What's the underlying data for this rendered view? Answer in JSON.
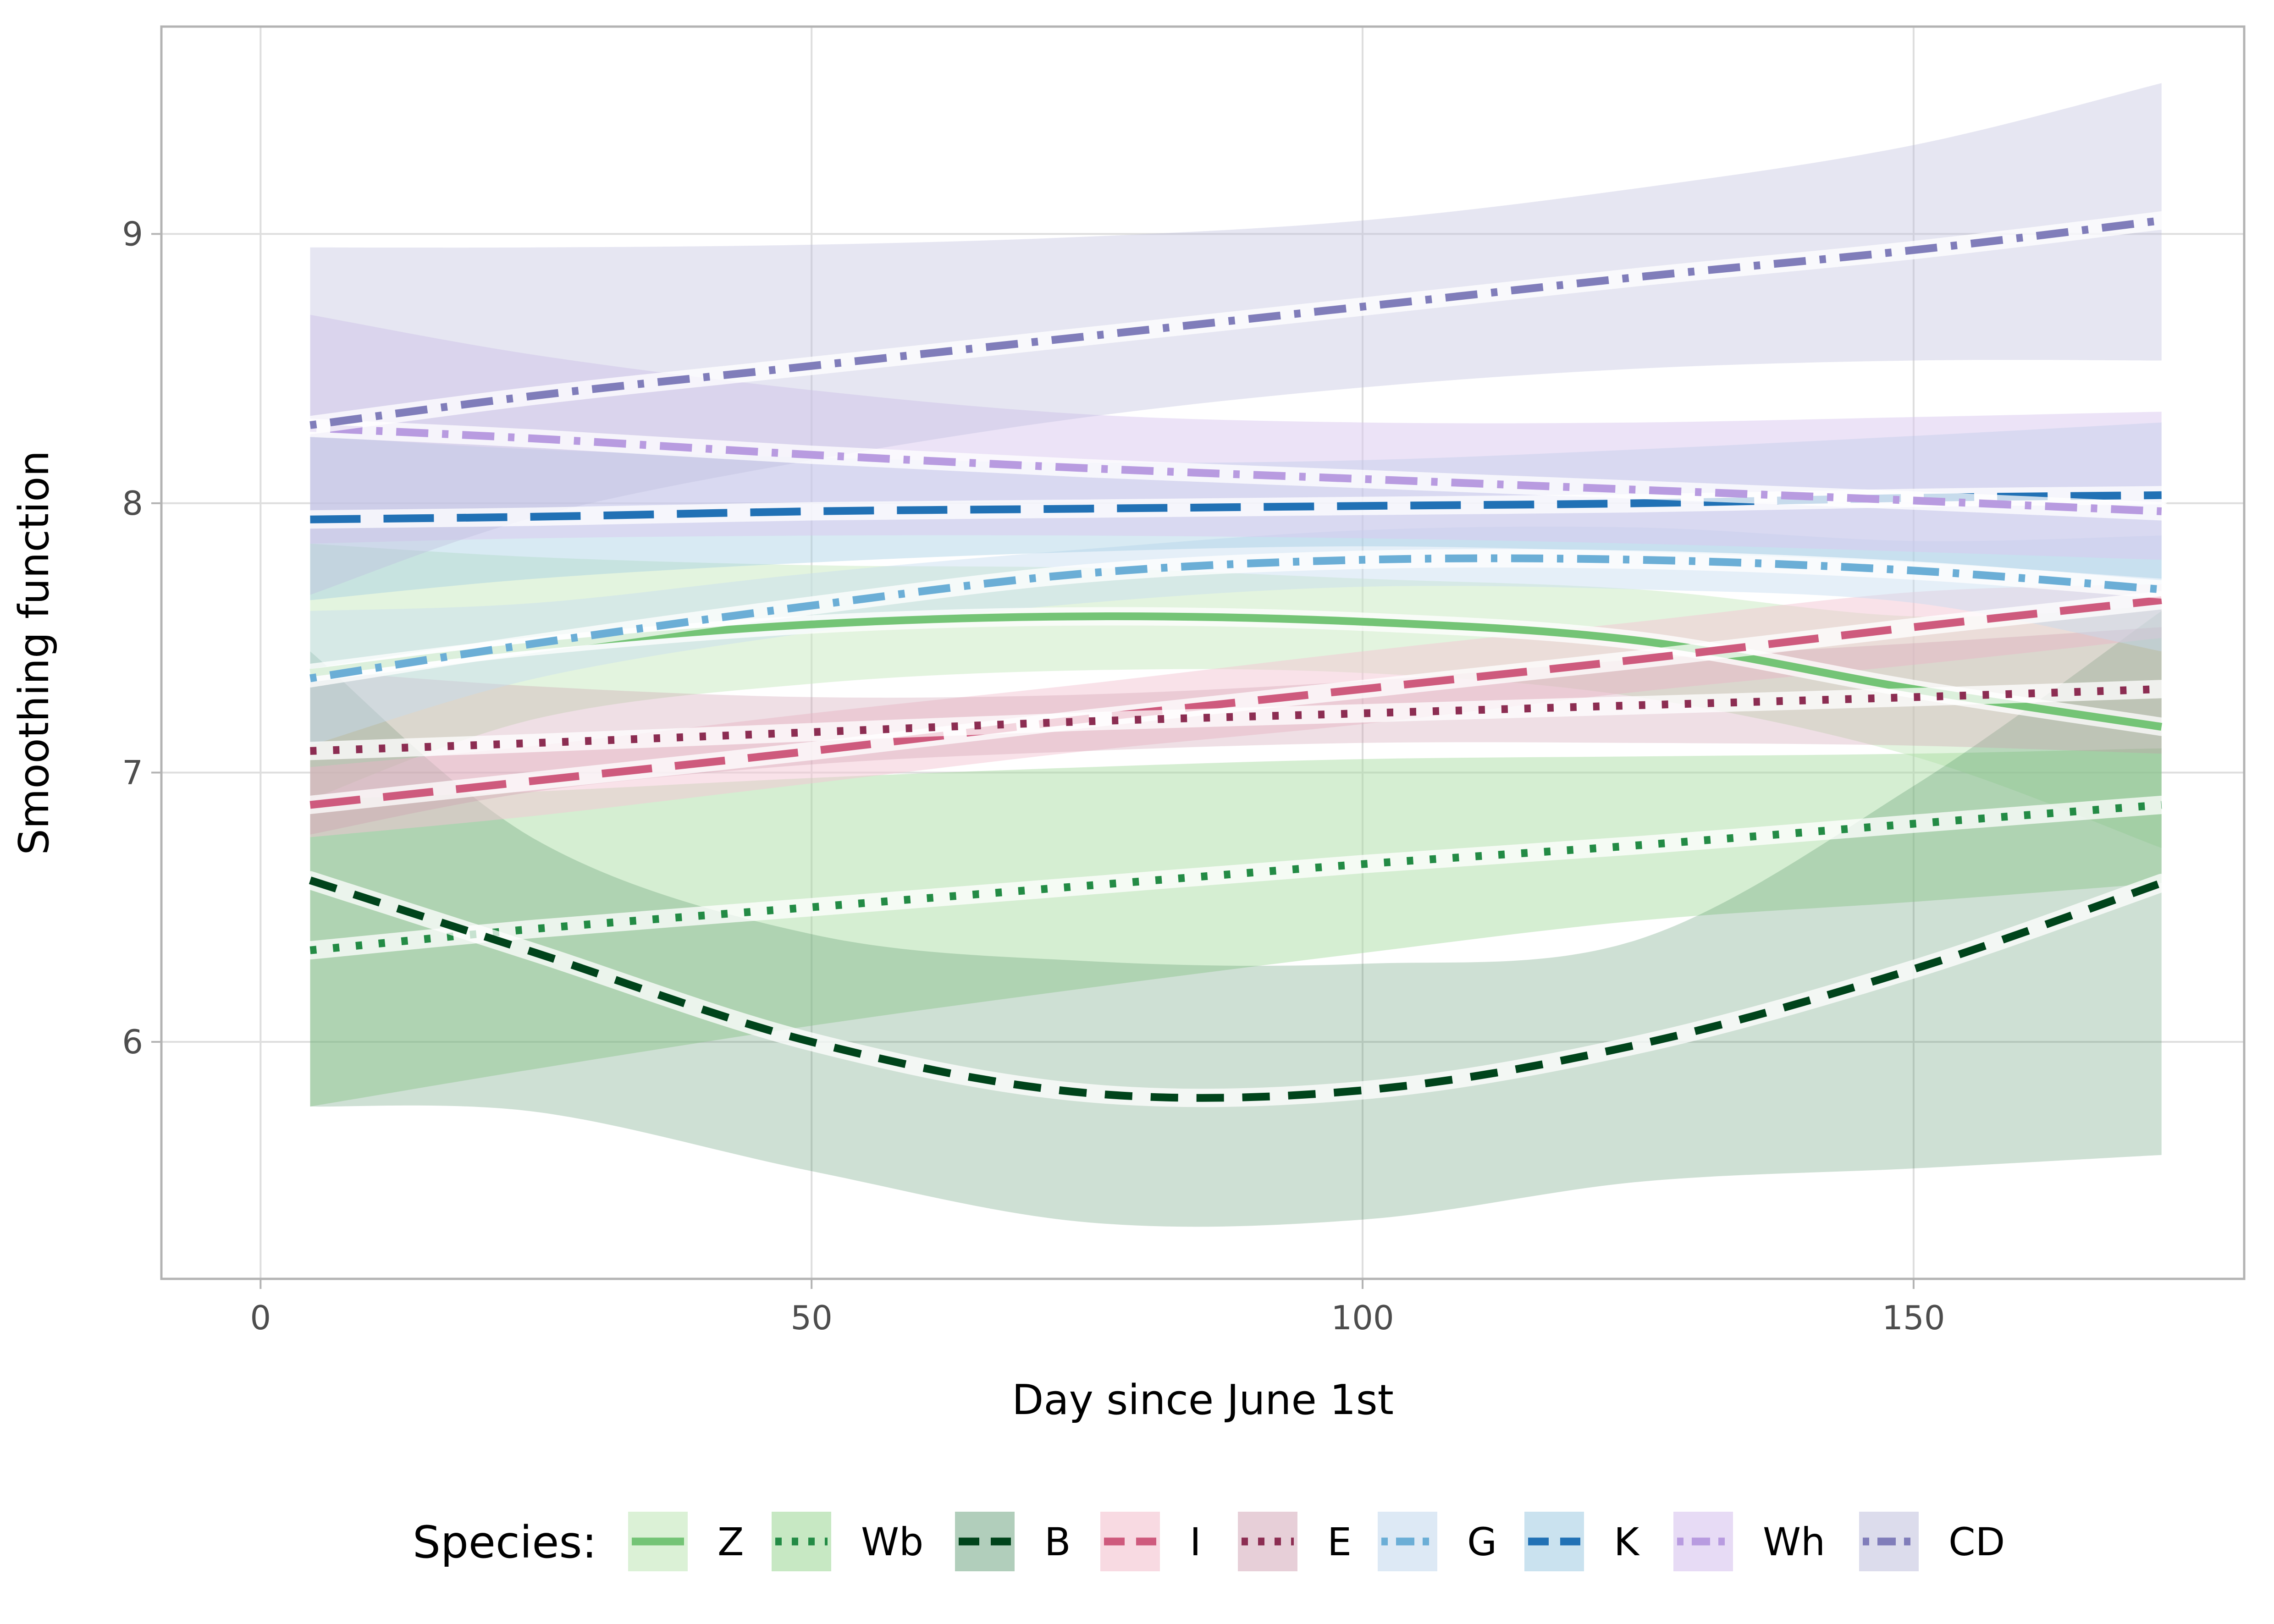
{
  "chart_data": {
    "type": "line",
    "xlabel": "Day since June 1st",
    "ylabel": "Smoothing function",
    "xlim": [
      -9,
      180
    ],
    "ylim": [
      5.12,
      9.77
    ],
    "xticks": [
      0,
      50,
      100,
      150
    ],
    "yticks": [
      6,
      7,
      8,
      9
    ],
    "grid": true,
    "legend_title": "Species:",
    "legend_position": "bottom",
    "x": [
      4.5,
      25,
      50,
      75,
      100,
      125,
      150,
      172.5
    ],
    "series": [
      {
        "name": "Z",
        "color": "#74c476",
        "band_color": "#c7e9c0",
        "band_opacity": 0.5,
        "dash": "solid",
        "values": [
          7.37,
          7.47,
          7.55,
          7.58,
          7.56,
          7.49,
          7.31,
          7.17
        ],
        "lower": [
          6.9,
          7.2,
          7.33,
          7.38,
          7.37,
          7.28,
          7.06,
          6.72
        ],
        "upper": [
          7.85,
          7.8,
          7.77,
          7.76,
          7.72,
          7.68,
          7.58,
          7.62
        ]
      },
      {
        "name": "Wb",
        "color": "#238b45",
        "band_color": "#a1d99b",
        "band_opacity": 0.45,
        "dash": "dotted",
        "values": [
          6.34,
          6.42,
          6.5,
          6.58,
          6.66,
          6.73,
          6.81,
          6.88
        ],
        "lower": [
          5.76,
          5.9,
          6.06,
          6.2,
          6.33,
          6.45,
          6.52,
          6.59
        ],
        "upper": [
          6.9,
          6.93,
          6.98,
          7.02,
          7.05,
          7.06,
          7.07,
          7.09
        ]
      },
      {
        "name": "B",
        "color": "#00441b",
        "band_color": "#41875a",
        "band_opacity": 0.26,
        "dash": "dashed",
        "values": [
          6.6,
          6.33,
          6.0,
          5.81,
          5.82,
          5.99,
          6.27,
          6.59
        ],
        "lower": [
          5.76,
          5.74,
          5.52,
          5.33,
          5.34,
          5.48,
          5.53,
          5.58
        ],
        "upper": [
          7.45,
          6.75,
          6.4,
          6.3,
          6.29,
          6.38,
          6.95,
          7.6
        ]
      },
      {
        "name": "I",
        "color": "#ce5a7d",
        "band_color": "#f4c6d3",
        "band_opacity": 0.5,
        "dash": "longdash",
        "values": [
          6.88,
          6.97,
          7.08,
          7.2,
          7.31,
          7.42,
          7.54,
          7.64
        ],
        "lower": [
          6.76,
          6.84,
          6.96,
          7.08,
          7.18,
          7.3,
          7.4,
          7.5
        ],
        "upper": [
          7.02,
          7.1,
          7.22,
          7.33,
          7.45,
          7.56,
          7.67,
          7.7
        ]
      },
      {
        "name": "E",
        "color": "#8c2d52",
        "band_color": "#c994a9",
        "band_opacity": 0.3,
        "dash": "dotted",
        "values": [
          7.08,
          7.11,
          7.15,
          7.19,
          7.22,
          7.25,
          7.28,
          7.31
        ],
        "lower": [
          6.77,
          6.93,
          7.03,
          7.08,
          7.11,
          7.11,
          7.1,
          7.07
        ],
        "upper": [
          7.38,
          7.32,
          7.28,
          7.29,
          7.34,
          7.42,
          7.48,
          7.54
        ]
      },
      {
        "name": "G",
        "color": "#6baed6",
        "band_color": "#c6dbef",
        "band_opacity": 0.45,
        "dash": "dotdash",
        "values": [
          7.35,
          7.48,
          7.62,
          7.74,
          7.79,
          7.79,
          7.75,
          7.68
        ],
        "lower": [
          7.1,
          7.35,
          7.52,
          7.63,
          7.69,
          7.68,
          7.63,
          7.45
        ],
        "upper": [
          7.6,
          7.63,
          7.74,
          7.83,
          7.9,
          7.91,
          7.86,
          7.88
        ]
      },
      {
        "name": "K",
        "color": "#2171b5",
        "band_color": "#9ecae1",
        "band_opacity": 0.4,
        "dash": "longdash",
        "values": [
          7.94,
          7.95,
          7.97,
          7.98,
          7.99,
          8.0,
          8.02,
          8.03
        ],
        "lower": [
          7.64,
          7.72,
          7.78,
          7.82,
          7.84,
          7.82,
          7.78,
          7.72
        ],
        "upper": [
          8.25,
          8.2,
          8.17,
          8.15,
          8.16,
          8.2,
          8.25,
          8.3
        ]
      },
      {
        "name": "Wh",
        "color": "#b89be0",
        "band_color": "#dac8f0",
        "band_opacity": 0.5,
        "dash": "dotdash",
        "values": [
          8.28,
          8.24,
          8.18,
          8.13,
          8.09,
          8.05,
          8.01,
          7.97
        ],
        "lower": [
          7.85,
          7.87,
          7.88,
          7.88,
          7.87,
          7.85,
          7.82,
          7.79
        ],
        "upper": [
          8.7,
          8.55,
          8.42,
          8.33,
          8.3,
          8.3,
          8.32,
          8.34
        ]
      },
      {
        "name": "CD",
        "color": "#807dba",
        "band_color": "#bcbddc",
        "band_opacity": 0.38,
        "dash": "dotdash",
        "values": [
          8.29,
          8.4,
          8.51,
          8.62,
          8.73,
          8.84,
          8.94,
          9.05
        ],
        "lower": [
          7.66,
          7.95,
          8.16,
          8.32,
          8.43,
          8.5,
          8.53,
          8.53
        ],
        "upper": [
          8.95,
          8.95,
          8.96,
          8.99,
          9.05,
          9.17,
          9.33,
          9.56
        ]
      }
    ]
  }
}
